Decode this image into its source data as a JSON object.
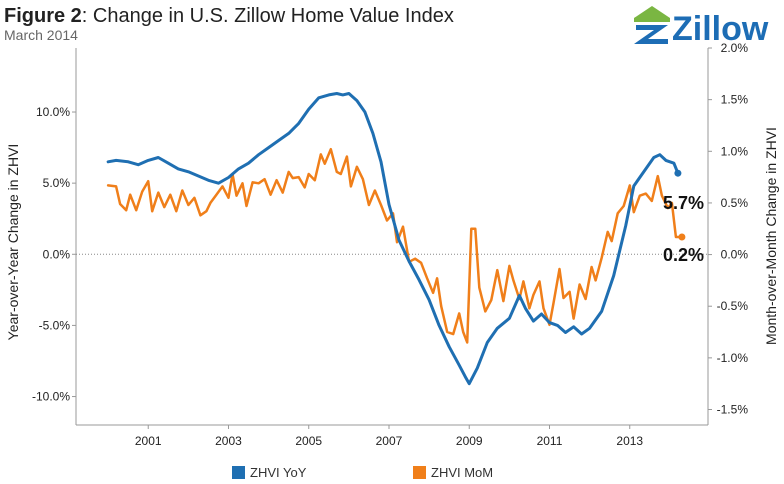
{
  "header": {
    "title_prefix": "Figure 2",
    "title_rest": ": Change in U.S. Zillow Home Value Index",
    "subtitle": "March 2014",
    "logo_text": "Zillow"
  },
  "colors": {
    "yoy": "#1f6fb2",
    "mom": "#f07f1a",
    "logo_blue": "#1d6db5",
    "logo_green": "#7ab642",
    "grid": "#bbbbbb",
    "axis": "#999999"
  },
  "chart_data": {
    "type": "line",
    "xlabel": "",
    "ylabel_left": "Year-over-Year Change in ZHVI",
    "ylabel_right": "Month-over-Month Change in ZHVI",
    "x_range": [
      1999.2,
      2014.95
    ],
    "x_ticks": [
      2001,
      2003,
      2005,
      2007,
      2009,
      2011,
      2013
    ],
    "x_tick_labels": [
      "2001",
      "2003",
      "2005",
      "2007",
      "2009",
      "2011",
      "2013"
    ],
    "y_left_range": [
      -12.0,
      14.5
    ],
    "y_left_ticks": [
      10,
      5,
      0,
      -5,
      -10
    ],
    "y_left_tick_labels": [
      "10.0%",
      "5.0%",
      "0.0%",
      "-5.0%",
      "-10.0%"
    ],
    "y_right_range": [
      -1.65,
      2.0
    ],
    "y_right_ticks": [
      2.0,
      1.5,
      1.0,
      0.5,
      0.0,
      -0.5,
      -1.0,
      -1.5
    ],
    "y_right_tick_labels": [
      "2.0%",
      "1.5%",
      "1.0%",
      "0.5%",
      "0.0%",
      "-0.5%",
      "-1.0%",
      "-1.5%"
    ],
    "zero_line_dotted": true,
    "legend_position": "bottom",
    "series": [
      {
        "name": "ZHVI YoY",
        "axis": "left",
        "color": "#1f6fb2",
        "end_label": "5.7%",
        "points": [
          [
            2000.0,
            6.5
          ],
          [
            2000.2,
            6.6
          ],
          [
            2000.5,
            6.5
          ],
          [
            2000.75,
            6.3
          ],
          [
            2001.0,
            6.6
          ],
          [
            2001.25,
            6.8
          ],
          [
            2001.5,
            6.4
          ],
          [
            2001.75,
            6.0
          ],
          [
            2002.0,
            5.8
          ],
          [
            2002.25,
            5.5
          ],
          [
            2002.5,
            5.2
          ],
          [
            2002.75,
            5.0
          ],
          [
            2003.0,
            5.4
          ],
          [
            2003.25,
            6.0
          ],
          [
            2003.5,
            6.4
          ],
          [
            2003.75,
            7.0
          ],
          [
            2004.0,
            7.5
          ],
          [
            2004.25,
            8.0
          ],
          [
            2004.5,
            8.5
          ],
          [
            2004.75,
            9.2
          ],
          [
            2005.0,
            10.2
          ],
          [
            2005.25,
            11.0
          ],
          [
            2005.5,
            11.2
          ],
          [
            2005.7,
            11.3
          ],
          [
            2005.85,
            11.2
          ],
          [
            2006.0,
            11.3
          ],
          [
            2006.2,
            10.8
          ],
          [
            2006.4,
            10.0
          ],
          [
            2006.6,
            8.5
          ],
          [
            2006.8,
            6.5
          ],
          [
            2007.0,
            3.5
          ],
          [
            2007.25,
            1.0
          ],
          [
            2007.5,
            -0.5
          ],
          [
            2007.75,
            -1.8
          ],
          [
            2008.0,
            -3.2
          ],
          [
            2008.25,
            -5.0
          ],
          [
            2008.5,
            -6.5
          ],
          [
            2008.75,
            -7.8
          ],
          [
            2008.9,
            -8.6
          ],
          [
            2009.0,
            -9.1
          ],
          [
            2009.2,
            -8.0
          ],
          [
            2009.45,
            -6.2
          ],
          [
            2009.7,
            -5.2
          ],
          [
            2010.0,
            -4.5
          ],
          [
            2010.25,
            -2.9
          ],
          [
            2010.4,
            -3.8
          ],
          [
            2010.6,
            -4.7
          ],
          [
            2010.8,
            -4.2
          ],
          [
            2011.0,
            -4.8
          ],
          [
            2011.2,
            -5.0
          ],
          [
            2011.4,
            -5.5
          ],
          [
            2011.6,
            -5.1
          ],
          [
            2011.8,
            -5.6
          ],
          [
            2012.0,
            -5.2
          ],
          [
            2012.3,
            -4.0
          ],
          [
            2012.6,
            -1.5
          ],
          [
            2012.9,
            2.0
          ],
          [
            2013.1,
            4.8
          ],
          [
            2013.4,
            6.0
          ],
          [
            2013.6,
            6.8
          ],
          [
            2013.75,
            7.0
          ],
          [
            2013.9,
            6.6
          ],
          [
            2014.1,
            6.4
          ],
          [
            2014.2,
            5.7
          ]
        ]
      },
      {
        "name": "ZHVI MoM",
        "axis": "right",
        "color": "#f07f1a",
        "end_label": "0.2%",
        "points": [
          [
            2000.0,
            0.67
          ],
          [
            2000.2,
            0.66
          ],
          [
            2000.3,
            0.49
          ],
          [
            2000.45,
            0.43
          ],
          [
            2000.55,
            0.58
          ],
          [
            2000.7,
            0.43
          ],
          [
            2000.85,
            0.61
          ],
          [
            2001.0,
            0.71
          ],
          [
            2001.1,
            0.42
          ],
          [
            2001.25,
            0.6
          ],
          [
            2001.4,
            0.46
          ],
          [
            2001.55,
            0.58
          ],
          [
            2001.7,
            0.42
          ],
          [
            2001.85,
            0.62
          ],
          [
            2002.0,
            0.48
          ],
          [
            2002.15,
            0.55
          ],
          [
            2002.3,
            0.38
          ],
          [
            2002.45,
            0.42
          ],
          [
            2002.55,
            0.5
          ],
          [
            2002.7,
            0.58
          ],
          [
            2002.85,
            0.66
          ],
          [
            2003.0,
            0.55
          ],
          [
            2003.1,
            0.78
          ],
          [
            2003.2,
            0.57
          ],
          [
            2003.35,
            0.69
          ],
          [
            2003.45,
            0.47
          ],
          [
            2003.6,
            0.7
          ],
          [
            2003.75,
            0.69
          ],
          [
            2003.9,
            0.73
          ],
          [
            2004.05,
            0.58
          ],
          [
            2004.2,
            0.72
          ],
          [
            2004.35,
            0.6
          ],
          [
            2004.5,
            0.8
          ],
          [
            2004.6,
            0.74
          ],
          [
            2004.75,
            0.75
          ],
          [
            2004.9,
            0.65
          ],
          [
            2005.0,
            0.78
          ],
          [
            2005.15,
            0.72
          ],
          [
            2005.3,
            0.97
          ],
          [
            2005.4,
            0.88
          ],
          [
            2005.55,
            1.02
          ],
          [
            2005.7,
            0.8
          ],
          [
            2005.8,
            0.78
          ],
          [
            2005.95,
            0.95
          ],
          [
            2006.05,
            0.66
          ],
          [
            2006.2,
            0.85
          ],
          [
            2006.35,
            0.73
          ],
          [
            2006.5,
            0.48
          ],
          [
            2006.65,
            0.62
          ],
          [
            2006.8,
            0.48
          ],
          [
            2006.95,
            0.33
          ],
          [
            2007.1,
            0.4
          ],
          [
            2007.2,
            0.12
          ],
          [
            2007.35,
            0.27
          ],
          [
            2007.5,
            -0.07
          ],
          [
            2007.65,
            -0.04
          ],
          [
            2007.8,
            -0.08
          ],
          [
            2007.95,
            -0.23
          ],
          [
            2008.1,
            -0.37
          ],
          [
            2008.2,
            -0.23
          ],
          [
            2008.3,
            -0.5
          ],
          [
            2008.45,
            -0.75
          ],
          [
            2008.6,
            -0.77
          ],
          [
            2008.75,
            -0.57
          ],
          [
            2008.85,
            -0.75
          ],
          [
            2008.95,
            -0.85
          ],
          [
            2009.05,
            0.25
          ],
          [
            2009.15,
            0.25
          ],
          [
            2009.25,
            -0.32
          ],
          [
            2009.4,
            -0.55
          ],
          [
            2009.55,
            -0.44
          ],
          [
            2009.7,
            -0.15
          ],
          [
            2009.85,
            -0.45
          ],
          [
            2010.0,
            -0.11
          ],
          [
            2010.1,
            -0.25
          ],
          [
            2010.25,
            -0.43
          ],
          [
            2010.35,
            -0.26
          ],
          [
            2010.5,
            -0.52
          ],
          [
            2010.6,
            -0.39
          ],
          [
            2010.75,
            -0.26
          ],
          [
            2010.85,
            -0.52
          ],
          [
            2011.0,
            -0.68
          ],
          [
            2011.1,
            -0.47
          ],
          [
            2011.25,
            -0.14
          ],
          [
            2011.35,
            -0.42
          ],
          [
            2011.5,
            -0.36
          ],
          [
            2011.6,
            -0.62
          ],
          [
            2011.75,
            -0.29
          ],
          [
            2011.9,
            -0.43
          ],
          [
            2012.05,
            -0.12
          ],
          [
            2012.15,
            -0.25
          ],
          [
            2012.3,
            -0.03
          ],
          [
            2012.45,
            0.22
          ],
          [
            2012.55,
            0.13
          ],
          [
            2012.7,
            0.4
          ],
          [
            2012.85,
            0.47
          ],
          [
            2013.0,
            0.67
          ],
          [
            2013.1,
            0.41
          ],
          [
            2013.25,
            0.57
          ],
          [
            2013.4,
            0.59
          ],
          [
            2013.55,
            0.52
          ],
          [
            2013.7,
            0.76
          ],
          [
            2013.8,
            0.57
          ],
          [
            2013.95,
            0.45
          ],
          [
            2014.05,
            0.5
          ],
          [
            2014.15,
            0.17
          ],
          [
            2014.3,
            0.17
          ]
        ]
      }
    ]
  }
}
